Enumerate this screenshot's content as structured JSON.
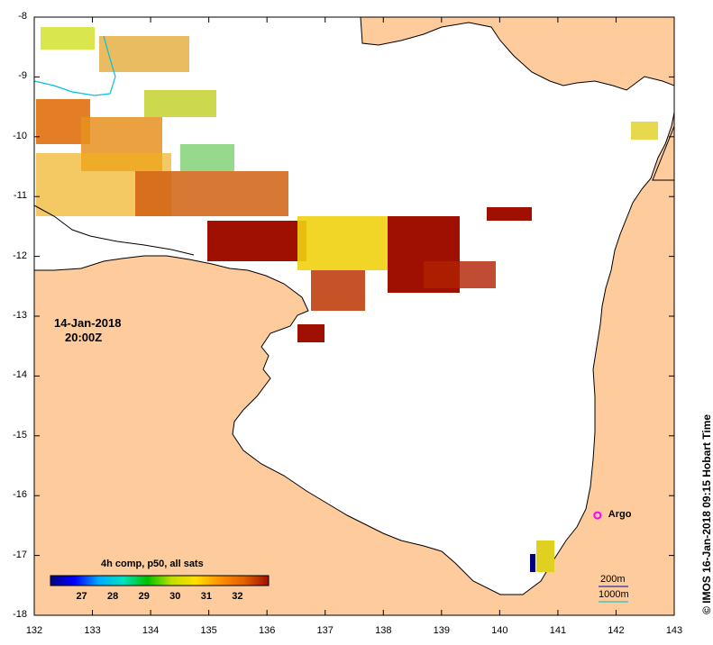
{
  "map": {
    "date": "14-Jan-2018",
    "time": "20:00Z",
    "credit": "© IMOS 16-Jan-2018 09:15 Hobart Time",
    "x_ticks": [
      "132",
      "133",
      "134",
      "135",
      "136",
      "137",
      "138",
      "139",
      "140",
      "141",
      "142",
      "143"
    ],
    "y_ticks": [
      "-8",
      "-9",
      "-10",
      "-11",
      "-12",
      "-13",
      "-14",
      "-15",
      "-16",
      "-17",
      "-18"
    ],
    "lon_range": [
      132,
      143
    ],
    "lat_range": [
      -18,
      -8
    ],
    "marker": {
      "label": "Argo",
      "lon": 141.68,
      "lat": -16.33,
      "color": "#ff00ff"
    },
    "scale_bar": {
      "label_200m": "200m",
      "label_1000m": "1000m",
      "color_200m": "#0000aa",
      "color_1000m": "#00c0c0"
    }
  },
  "legend": {
    "title": "4h comp, p50, all sats",
    "ticks": [
      "27",
      "28",
      "29",
      "30",
      "31",
      "32"
    ],
    "range": [
      26.0,
      33.0
    ],
    "colors": [
      "#000080",
      "#0000ff",
      "#00aaff",
      "#00e0c0",
      "#00c000",
      "#c0e000",
      "#ffe000",
      "#ff9000",
      "#e06000",
      "#a01000"
    ]
  },
  "colors": {
    "land": "#fdcb9c",
    "sea": "#ffffff",
    "coast": "#000000"
  }
}
